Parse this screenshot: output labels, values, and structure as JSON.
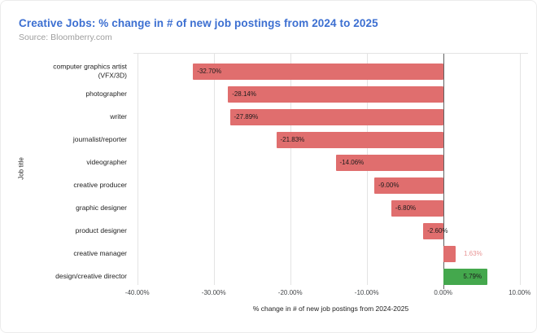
{
  "chart_data": {
    "type": "bar",
    "orientation": "horizontal",
    "title": "Creative Jobs: % change in # of new job postings from 2024 to 2025",
    "subtitle": "Source: Bloomberry.com",
    "xlabel": "% change in # of new job postings from 2024-2025",
    "ylabel": "Job title",
    "categories": [
      "computer graphics artist (VFX/3D)",
      "photographer",
      "writer",
      "journalist/reporter",
      "videographer",
      "creative producer",
      "graphic designer",
      "product designer",
      "creative manager",
      "design/creative director"
    ],
    "values": [
      -32.7,
      -28.14,
      -27.89,
      -21.83,
      -14.06,
      -9.0,
      -6.8,
      -2.6,
      1.63,
      5.79
    ],
    "value_labels": [
      "-32.70%",
      "-28.14%",
      "-27.89%",
      "-21.83%",
      "-14.06%",
      "-9.00%",
      "-6.80%",
      "-2.60%",
      "1.63%",
      "5.79%"
    ],
    "bar_colors": [
      "#e06e6e",
      "#e06e6e",
      "#e06e6e",
      "#e06e6e",
      "#e06e6e",
      "#e06e6e",
      "#e06e6e",
      "#e06e6e",
      "#e06e6e",
      "#44a84d"
    ],
    "xlim": [
      -40.5,
      11.1
    ],
    "x_ticks": [
      {
        "value": -40,
        "label": "-40.00%"
      },
      {
        "value": -30,
        "label": "-30.00%"
      },
      {
        "value": -20,
        "label": "-20.00%"
      },
      {
        "value": -10,
        "label": "-10.00%"
      },
      {
        "value": 0,
        "label": "0.00%"
      },
      {
        "value": 10,
        "label": "10.00%"
      }
    ],
    "legend": "none",
    "grid": "vertical",
    "colors": {
      "title": "#3c6fd1",
      "subtitle": "#9e9e9e",
      "negative_bar": "#e06e6e",
      "positive_bar": "#44a84d",
      "inside_label": "#1c1c1c",
      "outside_label": "#e89494",
      "gridline": "#e3e3e3",
      "zero_line": "#616161",
      "axis_text": "#44474a"
    }
  }
}
